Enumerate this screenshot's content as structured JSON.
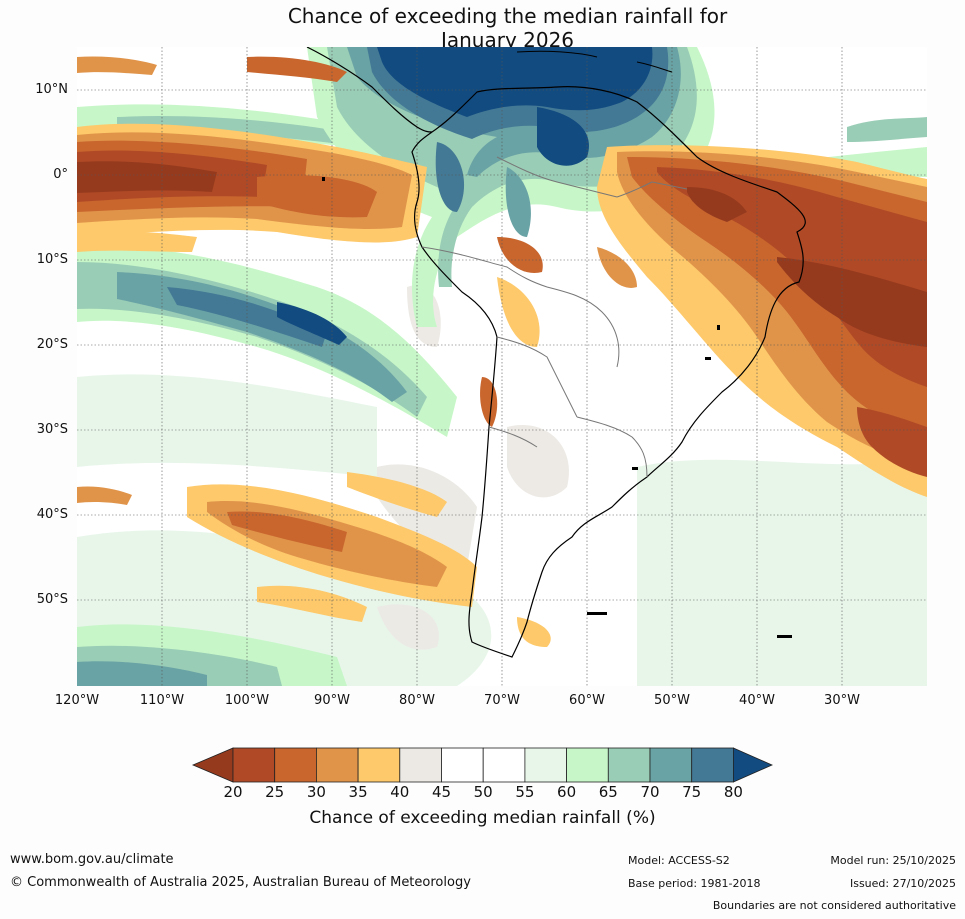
{
  "title": {
    "line1": "Chance of exceeding the median rainfall for",
    "line2": "January 2026"
  },
  "map": {
    "lat_labels": [
      "10°N",
      "0°",
      "10°S",
      "20°S",
      "30°S",
      "40°S",
      "50°S"
    ],
    "lon_labels": [
      "120°W",
      "110°W",
      "100°W",
      "90°W",
      "80°W",
      "70°W",
      "60°W",
      "50°W",
      "40°W",
      "30°W"
    ],
    "category_colors": {
      "<20": "#963a1e",
      "20-25": "#b04a26",
      "25-30": "#c8662e",
      "30-35": "#e0944a",
      "35-40": "#fdc96a",
      "40-45": "#ece9e4",
      "45-50": "#ffffff",
      "50-55": "#ffffff",
      "55-60": "#e7f6e9",
      "60-65": "#c7f7c8",
      "65-70": "#9acdb6",
      "70-75": "#6aa3a5",
      "75-80": "#447995",
      ">80": "#124b80"
    }
  },
  "colorbar": {
    "ticks": [
      "20",
      "25",
      "30",
      "35",
      "40",
      "45",
      "50",
      "55",
      "60",
      "65",
      "70",
      "75",
      "80"
    ],
    "title": "Chance of exceeding median rainfall (%)"
  },
  "footer": {
    "website": "www.bom.gov.au/climate",
    "copyright": "© Commonwealth of Australia 2025, Australian Bureau of Meteorology",
    "model": "Model: ACCESS-S2",
    "base_period": "Base period: 1981-2018",
    "model_run": "Model run: 25/10/2025",
    "issued": "Issued: 27/10/2025",
    "boundaries_note": "Boundaries are not considered authoritative"
  }
}
